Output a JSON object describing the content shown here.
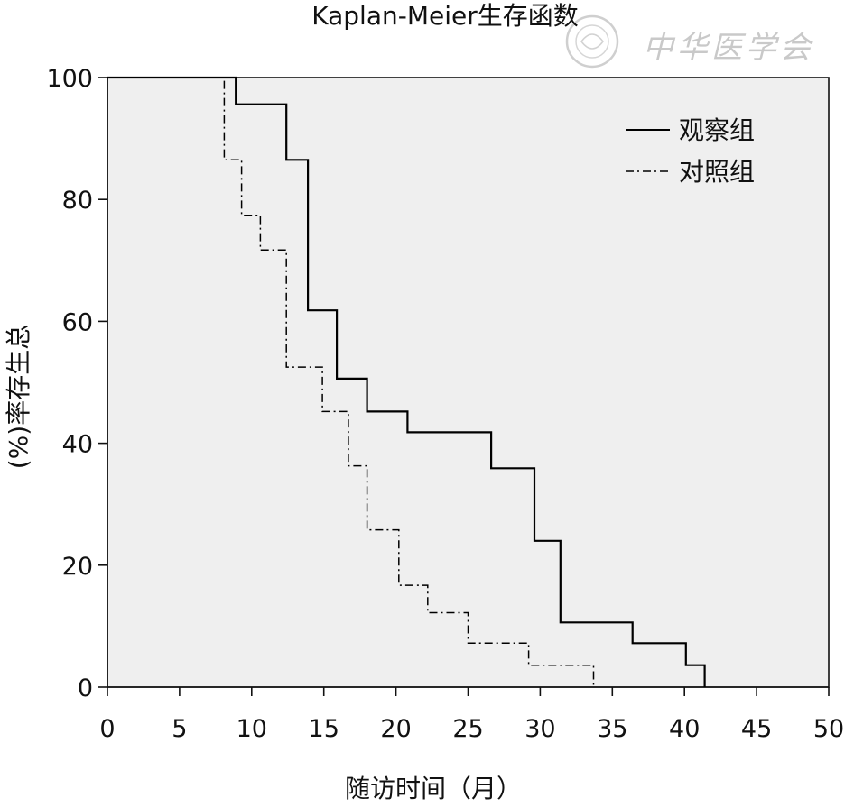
{
  "watermark": "中华医学会",
  "chart_data": {
    "type": "line",
    "step": true,
    "title": "Kaplan-Meier生存函数",
    "xlabel": "随访时间（月）",
    "ylabel": "(%)率存生总",
    "xlim": [
      0,
      50
    ],
    "ylim": [
      0,
      100
    ],
    "x_ticks": [
      "0",
      "5",
      "10",
      "15",
      "20",
      "25",
      "30",
      "35",
      "40",
      "45",
      "50"
    ],
    "y_ticks": [
      "0",
      "20",
      "40",
      "60",
      "80",
      "100"
    ],
    "grid": false,
    "plot_background": "#efefef",
    "legend_position": "top-right",
    "series": [
      {
        "name": "观察组",
        "line_style": "solid",
        "color": "#000000",
        "points": [
          [
            0,
            100
          ],
          [
            8.9,
            100
          ],
          [
            8.9,
            95.6
          ],
          [
            12.4,
            95.6
          ],
          [
            12.4,
            86.5
          ],
          [
            13.9,
            86.5
          ],
          [
            13.9,
            61.8
          ],
          [
            15.9,
            61.8
          ],
          [
            15.9,
            50.6
          ],
          [
            18.0,
            50.6
          ],
          [
            18.0,
            45.2
          ],
          [
            20.8,
            45.2
          ],
          [
            20.8,
            41.8
          ],
          [
            26.6,
            41.8
          ],
          [
            26.6,
            35.9
          ],
          [
            29.6,
            35.9
          ],
          [
            29.6,
            24.0
          ],
          [
            31.4,
            24.0
          ],
          [
            31.4,
            10.6
          ],
          [
            36.4,
            10.6
          ],
          [
            36.4,
            7.2
          ],
          [
            40.1,
            7.2
          ],
          [
            40.1,
            3.6
          ],
          [
            41.4,
            3.6
          ],
          [
            41.4,
            0
          ]
        ]
      },
      {
        "name": "对照组",
        "line_style": "dash-dot",
        "color": "#000000",
        "points": [
          [
            0,
            100
          ],
          [
            8.1,
            100
          ],
          [
            8.1,
            86.5
          ],
          [
            9.3,
            86.5
          ],
          [
            9.3,
            77.4
          ],
          [
            10.6,
            77.4
          ],
          [
            10.6,
            71.7
          ],
          [
            12.4,
            71.7
          ],
          [
            12.4,
            52.5
          ],
          [
            14.9,
            52.5
          ],
          [
            14.9,
            45.2
          ],
          [
            16.7,
            45.2
          ],
          [
            16.7,
            36.3
          ],
          [
            18.0,
            36.3
          ],
          [
            18.0,
            25.8
          ],
          [
            20.2,
            25.8
          ],
          [
            20.2,
            16.7
          ],
          [
            22.2,
            16.7
          ],
          [
            22.2,
            12.2
          ],
          [
            25.0,
            12.2
          ],
          [
            25.0,
            7.2
          ],
          [
            29.2,
            7.2
          ],
          [
            29.2,
            3.6
          ],
          [
            33.7,
            3.6
          ],
          [
            33.7,
            0
          ]
        ]
      }
    ]
  }
}
